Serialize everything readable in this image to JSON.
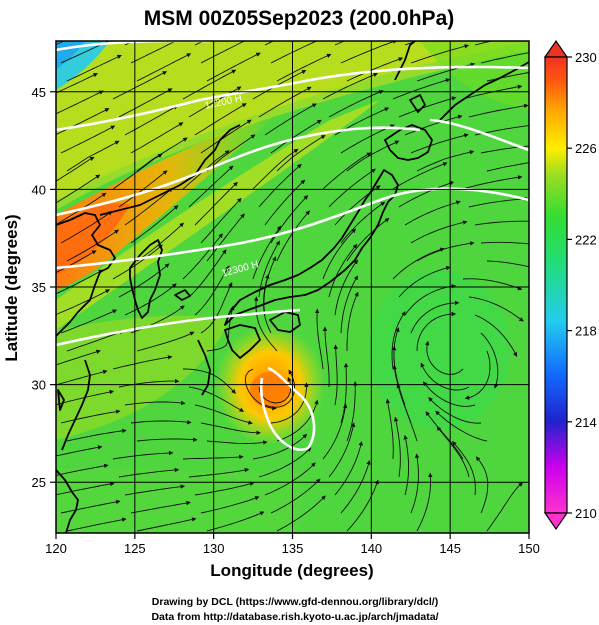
{
  "title": "MSM 00Z05Sep2023 (200.0hPa)",
  "x_axis": {
    "label": "Longitude (degrees)",
    "ticks": [
      {
        "value": 120,
        "label": "120"
      },
      {
        "value": 125,
        "label": "125"
      },
      {
        "value": 130,
        "label": "130"
      },
      {
        "value": 135,
        "label": "135"
      },
      {
        "value": 140,
        "label": "140"
      },
      {
        "value": 145,
        "label": "145"
      },
      {
        "value": 150,
        "label": "150"
      }
    ],
    "range": [
      120,
      150
    ]
  },
  "y_axis": {
    "label": "Latitude  (degrees)",
    "ticks": [
      {
        "value": 25,
        "label": "25"
      },
      {
        "value": 30,
        "label": "30"
      },
      {
        "value": 35,
        "label": "35"
      },
      {
        "value": 40,
        "label": "40"
      },
      {
        "value": 45,
        "label": "45"
      }
    ],
    "range": [
      22.4,
      47.6
    ]
  },
  "colorbar": {
    "ticks": [
      {
        "value": 210,
        "label": "210"
      },
      {
        "value": 214,
        "label": "214"
      },
      {
        "value": 218,
        "label": "218"
      },
      {
        "value": 222,
        "label": "222"
      },
      {
        "value": 226,
        "label": "226"
      },
      {
        "value": 230,
        "label": "230"
      }
    ],
    "range": [
      210,
      230
    ],
    "colors": [
      "#ff33cc",
      "#cc00ee",
      "#2222cc",
      "#1166ff",
      "#22ccee",
      "#22dd77",
      "#33dd33",
      "#99dd22",
      "#ffee00",
      "#ffaa00",
      "#ff5511",
      "#ee3322"
    ]
  },
  "contours": [
    {
      "label": "12200 H"
    },
    {
      "label": "12300 H"
    }
  ],
  "credits": [
    "Drawing by DCL (https://www.gfd-dennou.org/library/dcl/)",
    "Data from http://database.rish.kyoto-u.ac.jp/arch/jmadata/"
  ]
}
